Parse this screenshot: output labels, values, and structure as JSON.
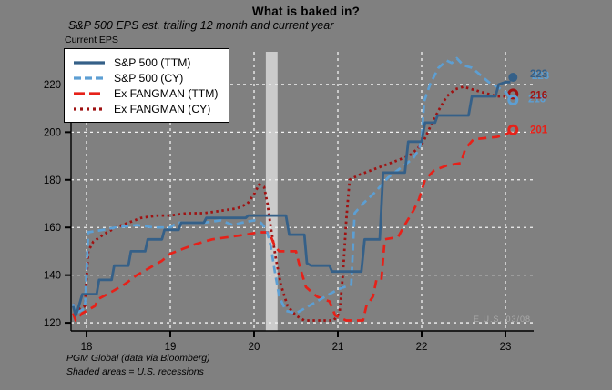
{
  "chart_data": {
    "type": "line",
    "title": "What is baked in?",
    "subtitle": "S&P 500 EPS est. trailing 12 month and current year",
    "axis_note": "Current EPS",
    "xlabel": "",
    "ylabel": "",
    "legend_position": "top-left",
    "grid": "white dashed gridlines on gray background",
    "xlim": [
      17.815,
      23.337
    ],
    "ylim": [
      116.6,
      233.7
    ],
    "x_ticks": [
      "18",
      "19",
      "20",
      "21",
      "22",
      "23"
    ],
    "x_tick_values": [
      18,
      19,
      20,
      21,
      22,
      23
    ],
    "y_ticks": [
      "120",
      "140",
      "160",
      "180",
      "200",
      "220"
    ],
    "y_tick_values": [
      120,
      140,
      160,
      180,
      200,
      220
    ],
    "colors": {
      "background": "#808080",
      "grid": "#f2f2f2",
      "axis": "#000000",
      "recession_band": "#cbcbcb",
      "sp500_ttm": "#356088",
      "sp500_cy": "#5d9fd3",
      "exfangman_ttm": "#e62119",
      "exfangman_cy": "#9f1212"
    },
    "recession_band": {
      "x0": 20.14,
      "x1": 20.28,
      "note": "U.S. recession"
    },
    "series": [
      {
        "name": "exfangman-cy",
        "label": "Ex FANGMAN (CY)",
        "color": "#9f1212",
        "dash": "2.5 3.5",
        "legend_dash": "3 4",
        "width": 2.8,
        "end_marker": {
          "type": "open",
          "x": 23.09,
          "value": 216
        },
        "points": [
          [
            17.84,
            128
          ],
          [
            17.87,
            125
          ],
          [
            17.98,
            127
          ],
          [
            18.02,
            150
          ],
          [
            18.08,
            154
          ],
          [
            18.2,
            157
          ],
          [
            18.35,
            160
          ],
          [
            18.5,
            162
          ],
          [
            18.65,
            164
          ],
          [
            18.85,
            165
          ],
          [
            19.0,
            165
          ],
          [
            19.2,
            166
          ],
          [
            19.4,
            166
          ],
          [
            19.6,
            167
          ],
          [
            19.8,
            168
          ],
          [
            19.92,
            170
          ],
          [
            20.0,
            174
          ],
          [
            20.06,
            178
          ],
          [
            20.12,
            177
          ],
          [
            20.16,
            170
          ],
          [
            20.2,
            160
          ],
          [
            20.26,
            147
          ],
          [
            20.32,
            136
          ],
          [
            20.4,
            127
          ],
          [
            20.5,
            123
          ],
          [
            20.6,
            121
          ],
          [
            20.8,
            121
          ],
          [
            20.95,
            121
          ],
          [
            21.02,
            124
          ],
          [
            21.06,
            140
          ],
          [
            21.1,
            163
          ],
          [
            21.14,
            180
          ],
          [
            21.25,
            182
          ],
          [
            21.4,
            184
          ],
          [
            21.55,
            186
          ],
          [
            21.7,
            188
          ],
          [
            21.85,
            190
          ],
          [
            21.95,
            193
          ],
          [
            22.02,
            196
          ],
          [
            22.1,
            202
          ],
          [
            22.2,
            209
          ],
          [
            22.3,
            215
          ],
          [
            22.4,
            218
          ],
          [
            22.5,
            219
          ],
          [
            22.6,
            218
          ],
          [
            22.7,
            217
          ],
          [
            22.8,
            216
          ],
          [
            22.9,
            215
          ],
          [
            23.0,
            215
          ],
          [
            23.05,
            215.5
          ]
        ]
      },
      {
        "name": "exfangman-ttm",
        "label": "Ex FANGMAN (TTM)",
        "color": "#e62119",
        "dash": "9 6",
        "legend_dash": "12 5",
        "width": 2.7,
        "end_marker": {
          "type": "open",
          "x": 23.09,
          "value": 201
        },
        "points": [
          [
            17.84,
            124
          ],
          [
            17.87,
            121
          ],
          [
            17.95,
            124
          ],
          [
            18.1,
            127
          ],
          [
            18.14,
            130
          ],
          [
            18.3,
            133
          ],
          [
            18.45,
            136
          ],
          [
            18.6,
            140
          ],
          [
            18.75,
            143
          ],
          [
            18.9,
            146
          ],
          [
            19.0,
            149
          ],
          [
            19.15,
            151
          ],
          [
            19.3,
            153
          ],
          [
            19.5,
            155
          ],
          [
            19.7,
            156
          ],
          [
            19.9,
            157
          ],
          [
            20.05,
            158
          ],
          [
            20.18,
            158
          ],
          [
            20.25,
            152
          ],
          [
            20.3,
            150
          ],
          [
            20.5,
            150
          ],
          [
            20.55,
            143
          ],
          [
            20.62,
            135
          ],
          [
            20.75,
            131
          ],
          [
            20.9,
            129
          ],
          [
            20.97,
            123
          ],
          [
            21.1,
            121
          ],
          [
            21.3,
            121
          ],
          [
            21.34,
            127
          ],
          [
            21.42,
            131
          ],
          [
            21.46,
            138
          ],
          [
            21.52,
            138
          ],
          [
            21.56,
            155
          ],
          [
            21.72,
            156
          ],
          [
            21.78,
            160
          ],
          [
            21.9,
            167
          ],
          [
            21.97,
            172
          ],
          [
            22.04,
            180
          ],
          [
            22.15,
            184
          ],
          [
            22.3,
            186
          ],
          [
            22.47,
            187
          ],
          [
            22.52,
            193
          ],
          [
            22.62,
            197
          ],
          [
            22.9,
            198
          ],
          [
            23.0,
            199
          ],
          [
            23.05,
            200
          ]
        ]
      },
      {
        "name": "sp500-cy",
        "label": "S&P 500 (CY)",
        "color": "#5d9fd3",
        "dash": "8 5",
        "legend_dash": "8 4",
        "width": 2.7,
        "end_marker": {
          "type": "open",
          "x": 23.09,
          "value": 213.5
        },
        "points": [
          [
            17.84,
            128
          ],
          [
            17.87,
            124
          ],
          [
            17.98,
            126
          ],
          [
            18.02,
            158
          ],
          [
            18.2,
            159
          ],
          [
            18.35,
            160
          ],
          [
            18.6,
            161
          ],
          [
            18.8,
            160
          ],
          [
            19.0,
            160
          ],
          [
            19.08,
            162
          ],
          [
            19.4,
            162
          ],
          [
            19.6,
            163
          ],
          [
            19.75,
            161
          ],
          [
            19.85,
            162
          ],
          [
            20.0,
            163
          ],
          [
            20.08,
            162
          ],
          [
            20.15,
            159
          ],
          [
            20.2,
            152
          ],
          [
            20.25,
            141
          ],
          [
            20.3,
            131
          ],
          [
            20.38,
            125
          ],
          [
            20.5,
            124
          ],
          [
            20.6,
            126
          ],
          [
            20.75,
            129
          ],
          [
            20.9,
            132
          ],
          [
            21.0,
            134
          ],
          [
            21.16,
            136
          ],
          [
            21.2,
            166
          ],
          [
            21.3,
            170
          ],
          [
            21.45,
            175
          ],
          [
            21.6,
            181
          ],
          [
            21.75,
            185
          ],
          [
            21.9,
            189
          ],
          [
            21.97,
            193
          ],
          [
            22.0,
            197
          ],
          [
            22.03,
            213
          ],
          [
            22.1,
            220
          ],
          [
            22.2,
            227
          ],
          [
            22.3,
            230
          ],
          [
            22.36,
            229
          ],
          [
            22.42,
            231
          ],
          [
            22.5,
            228
          ],
          [
            22.6,
            227
          ],
          [
            22.7,
            224
          ],
          [
            22.8,
            221
          ],
          [
            22.9,
            219
          ],
          [
            23.0,
            217
          ],
          [
            23.06,
            214
          ]
        ]
      },
      {
        "name": "sp500-ttm",
        "label": "S&P 500 (TTM)",
        "color": "#356088",
        "dash": "",
        "legend_dash": "",
        "width": 2.8,
        "end_marker": {
          "type": "filled",
          "x": 23.09,
          "value": 223
        },
        "points": [
          [
            17.84,
            127
          ],
          [
            17.87,
            123
          ],
          [
            17.9,
            126
          ],
          [
            17.95,
            132
          ],
          [
            18.12,
            132
          ],
          [
            18.15,
            138
          ],
          [
            18.3,
            138
          ],
          [
            18.33,
            144
          ],
          [
            18.5,
            144
          ],
          [
            18.53,
            150
          ],
          [
            18.7,
            150
          ],
          [
            18.73,
            155
          ],
          [
            18.9,
            155
          ],
          [
            18.93,
            159
          ],
          [
            19.1,
            159
          ],
          [
            19.13,
            162
          ],
          [
            19.4,
            162
          ],
          [
            19.43,
            164
          ],
          [
            19.9,
            164
          ],
          [
            19.93,
            165
          ],
          [
            20.38,
            165
          ],
          [
            20.42,
            157
          ],
          [
            20.6,
            157
          ],
          [
            20.63,
            145
          ],
          [
            20.68,
            144
          ],
          [
            20.9,
            144
          ],
          [
            20.93,
            141.5
          ],
          [
            21.28,
            141.5
          ],
          [
            21.32,
            155
          ],
          [
            21.5,
            155
          ],
          [
            21.54,
            183
          ],
          [
            21.8,
            183
          ],
          [
            21.84,
            196
          ],
          [
            22.0,
            196
          ],
          [
            22.04,
            204
          ],
          [
            22.16,
            204
          ],
          [
            22.19,
            207
          ],
          [
            22.56,
            207
          ],
          [
            22.6,
            215
          ],
          [
            22.88,
            215
          ],
          [
            22.92,
            220
          ],
          [
            23.0,
            221
          ],
          [
            23.06,
            221
          ]
        ]
      }
    ],
    "legend_order": [
      "sp500-ttm",
      "sp500-cy",
      "exfangman-ttm",
      "exfangman-cy"
    ],
    "end_labels": [
      {
        "text": "223",
        "value": 224.5,
        "color": "#356088",
        "ghost_color": "#5d9fd3",
        "ghost_dx": 2,
        "ghost_dy": 2
      },
      {
        "text": "216",
        "value": 215.5,
        "color": "#9f1212",
        "ghost_color": "#5d9fd3",
        "ghost_dx": -2,
        "ghost_dy": 4
      },
      {
        "text": "201",
        "value": 201,
        "color": "#e62119"
      }
    ],
    "footnote_1": "PGM Global (data via Bloomberg)",
    "footnote_2": "Shaded areas = U.S. recessions",
    "watermark": "E U.S. 03/08"
  }
}
